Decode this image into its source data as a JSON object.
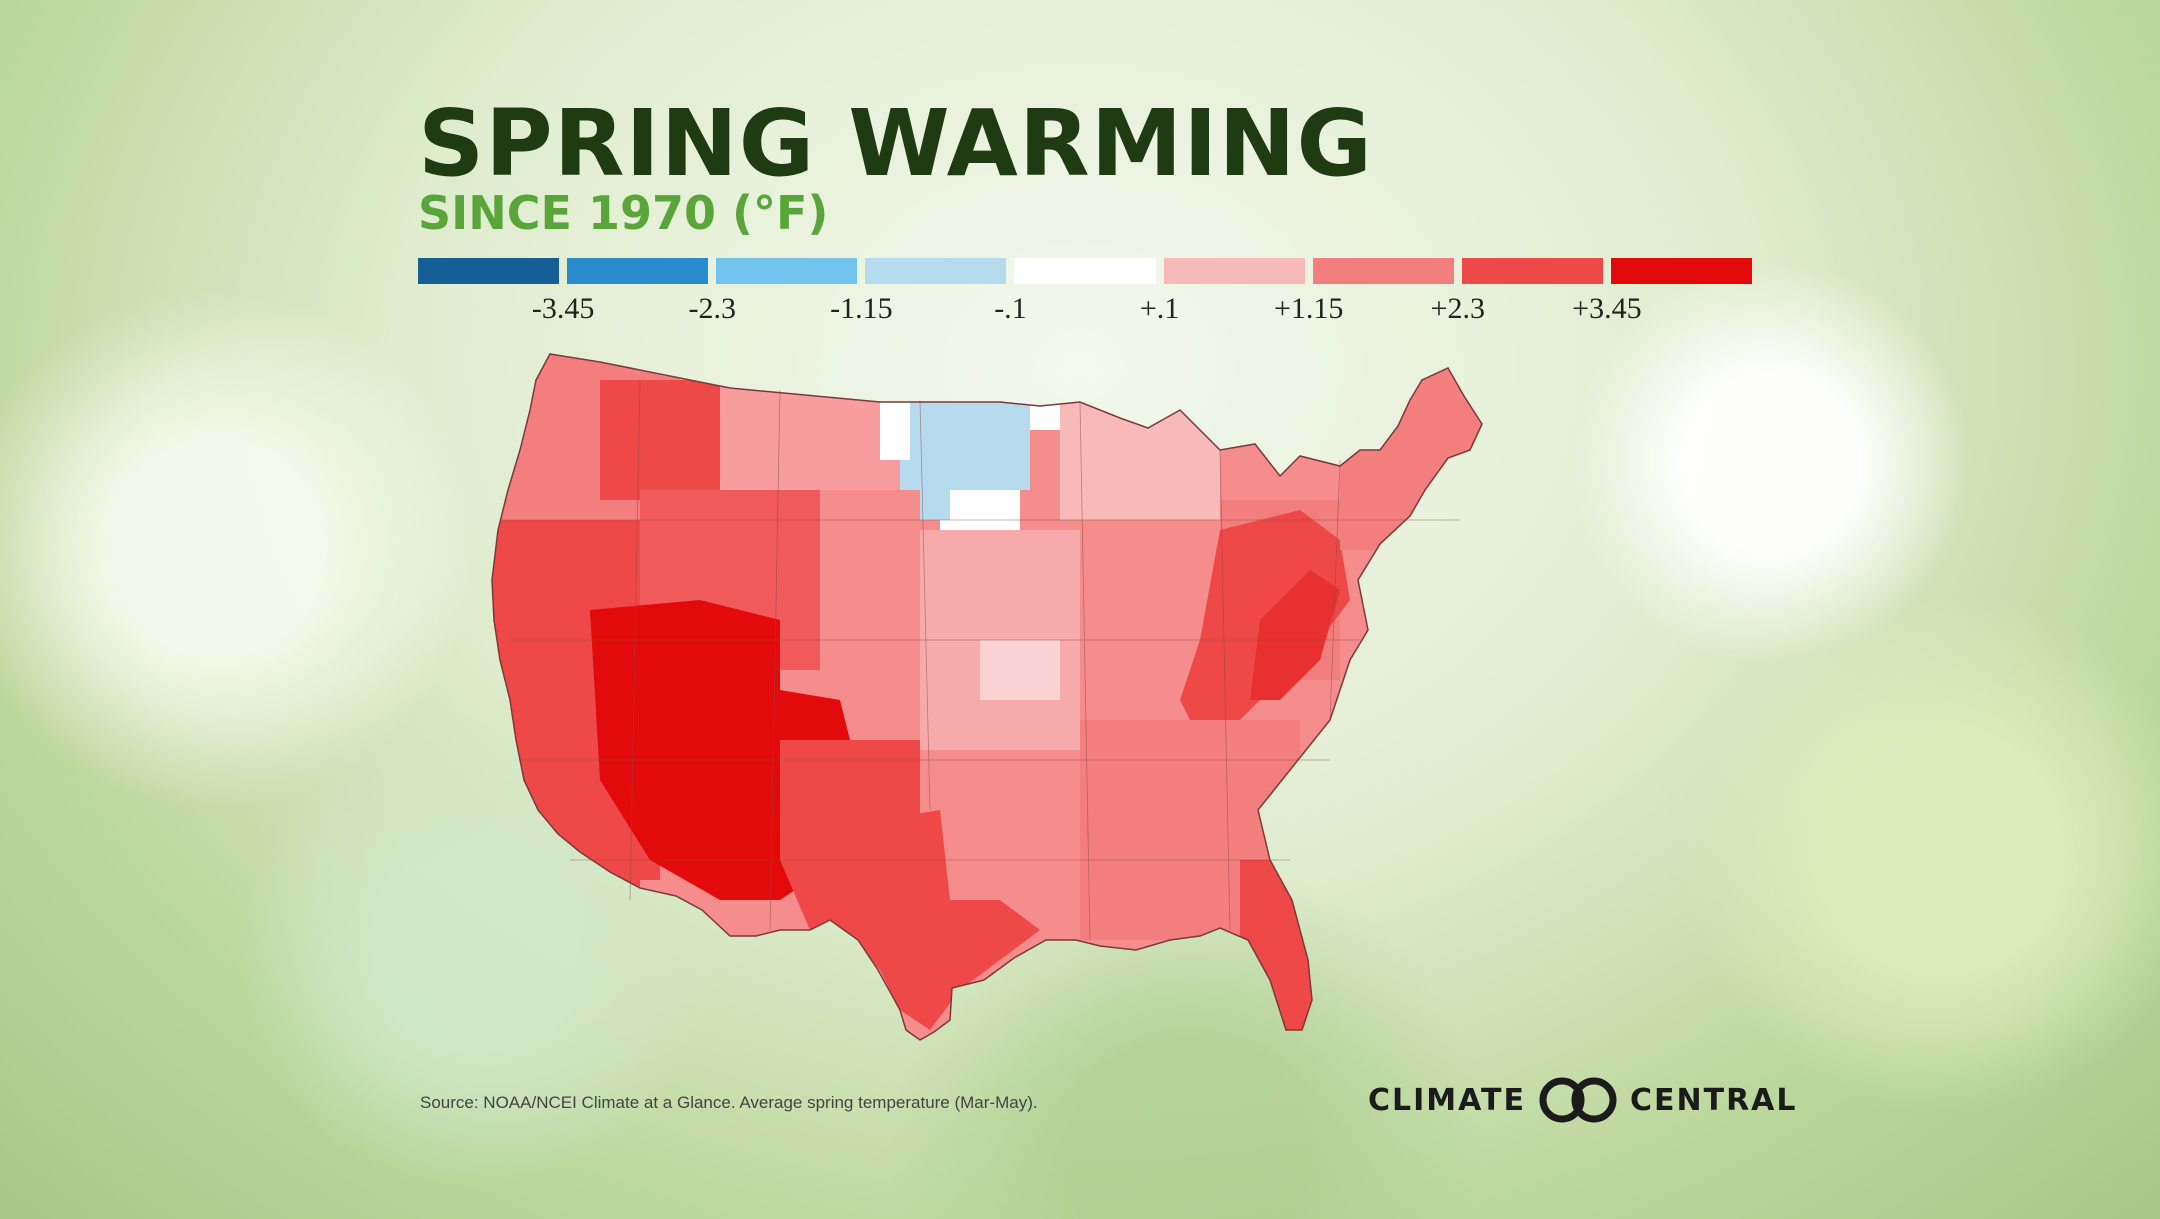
{
  "title": "SPRING WARMING",
  "subtitle": "SINCE 1970 (°F)",
  "legend": {
    "colors": [
      "#155f96",
      "#2a8ccc",
      "#72c3ee",
      "#b6dbef",
      "#ffffff",
      "#f8b9b9",
      "#f27e7e",
      "#ef4848",
      "#e20a0a"
    ],
    "labels": [
      "-3.45",
      "-2.3",
      "-1.15",
      "-.1",
      "+.1",
      "+1.15",
      "+2.3",
      "+3.45"
    ]
  },
  "map": {
    "region": "Contiguous United States",
    "pattern": "Strongest warming (above +3.45 °F) across the desert Southwest and parts of the central Appalachians; cooling (blue) limited to North and South Dakota; most other regions +1.15 to +3.45 °F"
  },
  "source": "Source: NOAA/NCEI Climate at a Glance. Average spring temperature (Mar-May).",
  "brand": {
    "left": "CLIMATE",
    "right": "CENTRAL"
  }
}
